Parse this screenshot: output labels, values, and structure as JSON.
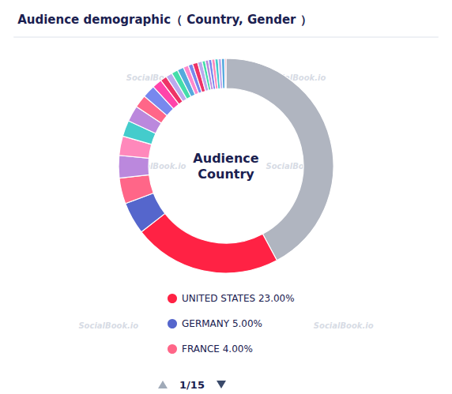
{
  "chart_data": {
    "type": "donut",
    "title": "Audience demographic（ Country, Gender ）",
    "center_label": "Audience\nCountry",
    "watermark": "SocialBook.io",
    "pagination": "1/15",
    "categories": [
      null,
      "UNITED STATES 23.00%",
      "GERMANY 5.00%",
      "FRANCE 4.00%",
      null,
      null,
      null,
      null,
      null,
      null,
      null,
      null,
      null,
      null,
      null,
      null,
      null,
      null,
      null,
      null,
      null,
      null,
      null,
      null,
      null,
      null,
      null
    ],
    "values": [
      43.5,
      23.0,
      5.0,
      4.0,
      3.5,
      3.0,
      2.5,
      2.5,
      2.0,
      2.0,
      1.5,
      1.0,
      1.0,
      1.0,
      1.0,
      0.8,
      0.7,
      0.8,
      0.7,
      0.5,
      0.5,
      0.5,
      0.5,
      0.5,
      0.5,
      0.5,
      0.2
    ],
    "colors": [
      "#b0b5c0",
      "#ff2244",
      "#5566cc",
      "#ff6688",
      "#bb88dd",
      "#ff88bb",
      "#44cccc",
      "#bb88dd",
      "#ff6688",
      "#7788ee",
      "#ff44aa",
      "#ee3366",
      "#bbaaee",
      "#44ddaa",
      "#55aadd",
      "#ff88cc",
      "#7788ee",
      "#ee3366",
      "#bbaaee",
      "#44ddaa",
      "#bb88dd",
      "#7788ee",
      "#ff88bb",
      "#44cccc",
      "#bbaaee",
      "#55aadd",
      "#ff6688"
    ],
    "legend": "bottom"
  }
}
